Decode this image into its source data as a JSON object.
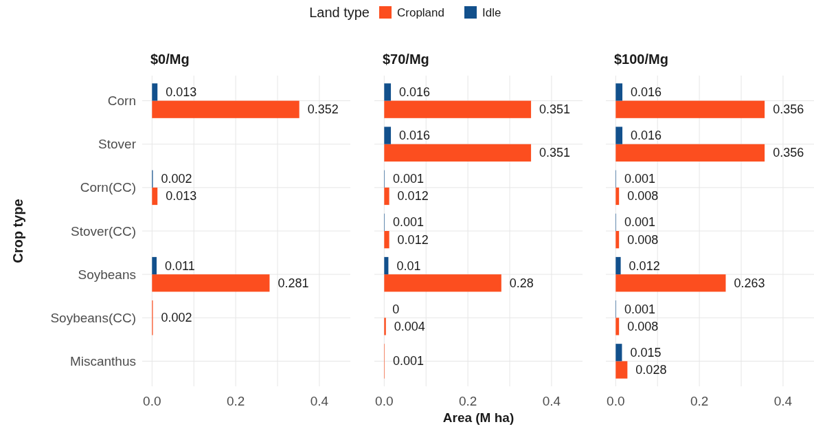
{
  "chart_data": [
    {
      "type": "bar",
      "orientation": "horizontal",
      "title": "$0/Mg",
      "ylabel": "Crop type",
      "legend_title": "Land type",
      "legend": "top",
      "grid": true,
      "data_labels": true,
      "categories": [
        "Corn",
        "Stover",
        "Corn(CC)",
        "Stover(CC)",
        "Soybeans",
        "Soybeans(CC)",
        "Miscanthus"
      ],
      "xlim": [
        -0.0235,
        0.474
      ],
      "xticks": [
        {
          "value": 0,
          "label": "0.0"
        },
        {
          "value": 0.1,
          "label": null
        },
        {
          "value": 0.2,
          "label": "0.2"
        },
        {
          "value": 0.3,
          "label": null
        },
        {
          "value": 0.4,
          "label": "0.4"
        }
      ],
      "series": [
        {
          "name": "Cropland",
          "color": "#fc4e1f",
          "values": [
            0.352,
            null,
            0.013,
            null,
            0.281,
            0.002,
            null
          ]
        },
        {
          "name": "Idle",
          "color": "#12508c",
          "values": [
            0.013,
            null,
            0.002,
            null,
            0.011,
            null,
            null
          ]
        }
      ]
    },
    {
      "type": "bar",
      "orientation": "horizontal",
      "title": "$70/Mg",
      "xlabel": "Area (M ha)",
      "grid": true,
      "data_labels": true,
      "tick_labels": "x",
      "categories": [
        null,
        null,
        null,
        null,
        null,
        null,
        null
      ],
      "xlim": [
        -0.0235,
        0.474
      ],
      "xticks": [
        {
          "value": 0,
          "label": "0.0"
        },
        {
          "value": 0.1,
          "label": null
        },
        {
          "value": 0.2,
          "label": "0.2"
        },
        {
          "value": 0.3,
          "label": null
        },
        {
          "value": 0.4,
          "label": "0.4"
        }
      ],
      "series": [
        {
          "color": "#fc4e1f",
          "values": [
            0.351,
            0.351,
            0.012,
            0.012,
            0.28,
            0.004,
            0.001
          ]
        },
        {
          "color": "#12508c",
          "values": [
            0.016,
            0.016,
            0.001,
            0.001,
            0.01,
            0,
            null
          ]
        }
      ]
    },
    {
      "type": "bar",
      "orientation": "horizontal",
      "title": "$100/Mg",
      "grid": true,
      "data_labels": true,
      "tick_labels": "x",
      "categories": [
        null,
        null,
        null,
        null,
        null,
        null,
        null
      ],
      "xlim": [
        -0.0235,
        0.474
      ],
      "xticks": [
        {
          "value": 0,
          "label": "0.0"
        },
        {
          "value": 0.1,
          "label": null
        },
        {
          "value": 0.2,
          "label": "0.2"
        },
        {
          "value": 0.3,
          "label": null
        },
        {
          "value": 0.4,
          "label": "0.4"
        }
      ],
      "series": [
        {
          "color": "#fc4e1f",
          "values": [
            0.356,
            0.356,
            0.008,
            0.008,
            0.263,
            0.008,
            0.028
          ]
        },
        {
          "color": "#12508c",
          "values": [
            0.016,
            0.016,
            0.001,
            0.001,
            0.012,
            0.001,
            0.015
          ]
        }
      ]
    }
  ]
}
